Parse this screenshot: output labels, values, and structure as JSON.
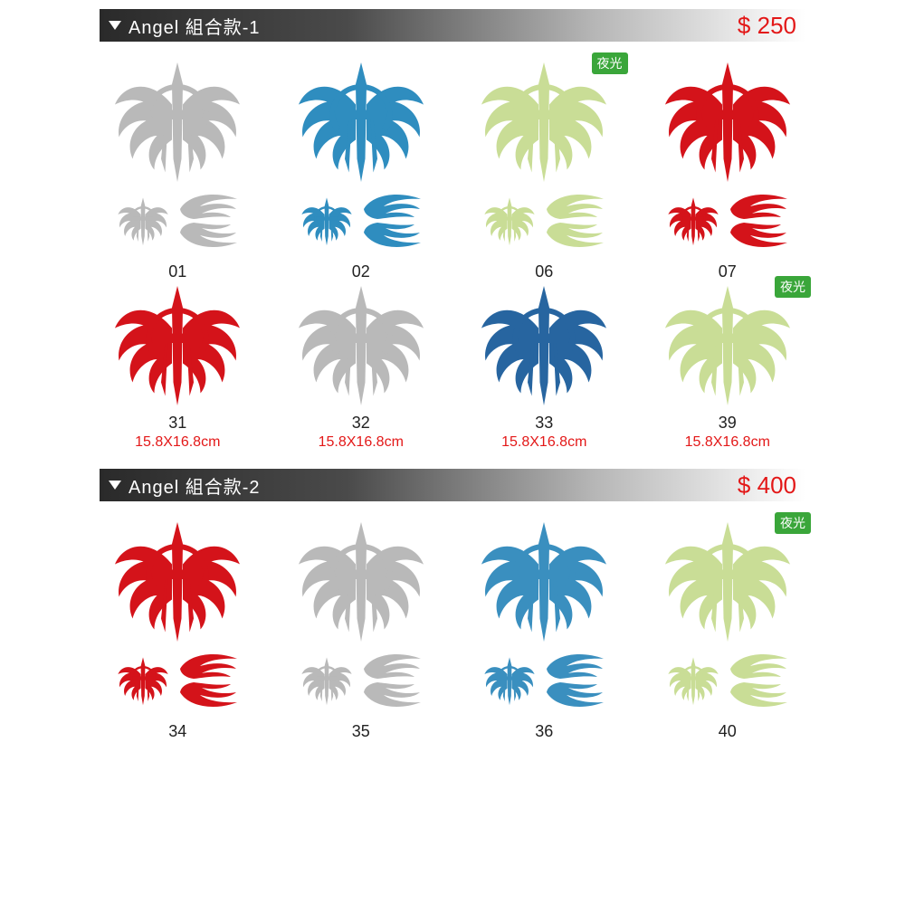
{
  "badge": {
    "text": "夜光",
    "bg": "#3aa63a",
    "fg": "#ffffff"
  },
  "colors": {
    "price": "#e31818",
    "dim": "#e31818",
    "num": "#222222"
  },
  "sections": [
    {
      "title": "Angel  組合款-1",
      "price": "$ 250",
      "rows": [
        {
          "show_sub": true,
          "items": [
            {
              "num": "01",
              "color": "#b9b9b9",
              "badge": false
            },
            {
              "num": "02",
              "color": "#2f8dbf",
              "badge": false
            },
            {
              "num": "06",
              "color": "#c9dd96",
              "badge": true
            },
            {
              "num": "07",
              "color": "#d4131a",
              "badge": false
            }
          ]
        },
        {
          "show_sub": false,
          "show_dim": true,
          "items": [
            {
              "num": "31",
              "color": "#d4131a",
              "dim": "15.8X16.8cm",
              "badge": false
            },
            {
              "num": "32",
              "color": "#b9b9b9",
              "dim": "15.8X16.8cm",
              "badge": false
            },
            {
              "num": "33",
              "color": "#2765a0",
              "dim": "15.8X16.8cm",
              "badge": false
            },
            {
              "num": "39",
              "color": "#c9dd96",
              "dim": "15.8X16.8cm",
              "badge": true
            }
          ]
        }
      ]
    },
    {
      "title": "Angel  組合款-2",
      "price": "$ 400",
      "rows": [
        {
          "show_sub": true,
          "items": [
            {
              "num": "34",
              "color": "#d4131a",
              "badge": false
            },
            {
              "num": "35",
              "color": "#b9b9b9",
              "badge": false
            },
            {
              "num": "36",
              "color": "#3a8fbf",
              "badge": false
            },
            {
              "num": "40",
              "color": "#c9dd96",
              "badge": true
            }
          ]
        }
      ]
    }
  ]
}
